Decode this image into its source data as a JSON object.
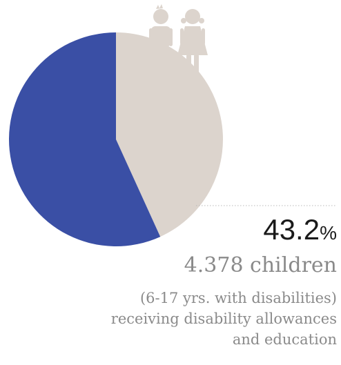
{
  "chart_data": {
    "type": "pie",
    "slices": [
      {
        "label": "receiving disability allowances and education",
        "value": 43.2,
        "color": "#dcd4cd"
      },
      {
        "label": "",
        "value": 56.8,
        "color": "#3a4fa5"
      }
    ]
  },
  "annotation": {
    "percent_value": "43.2",
    "percent_unit": "%",
    "count": "4.378 children",
    "desc_line1": "(6-17 yrs. with disabilities)",
    "desc_line2": "receiving disability allowances",
    "desc_line3": "and education"
  },
  "icon": "children-boy-girl-icon"
}
